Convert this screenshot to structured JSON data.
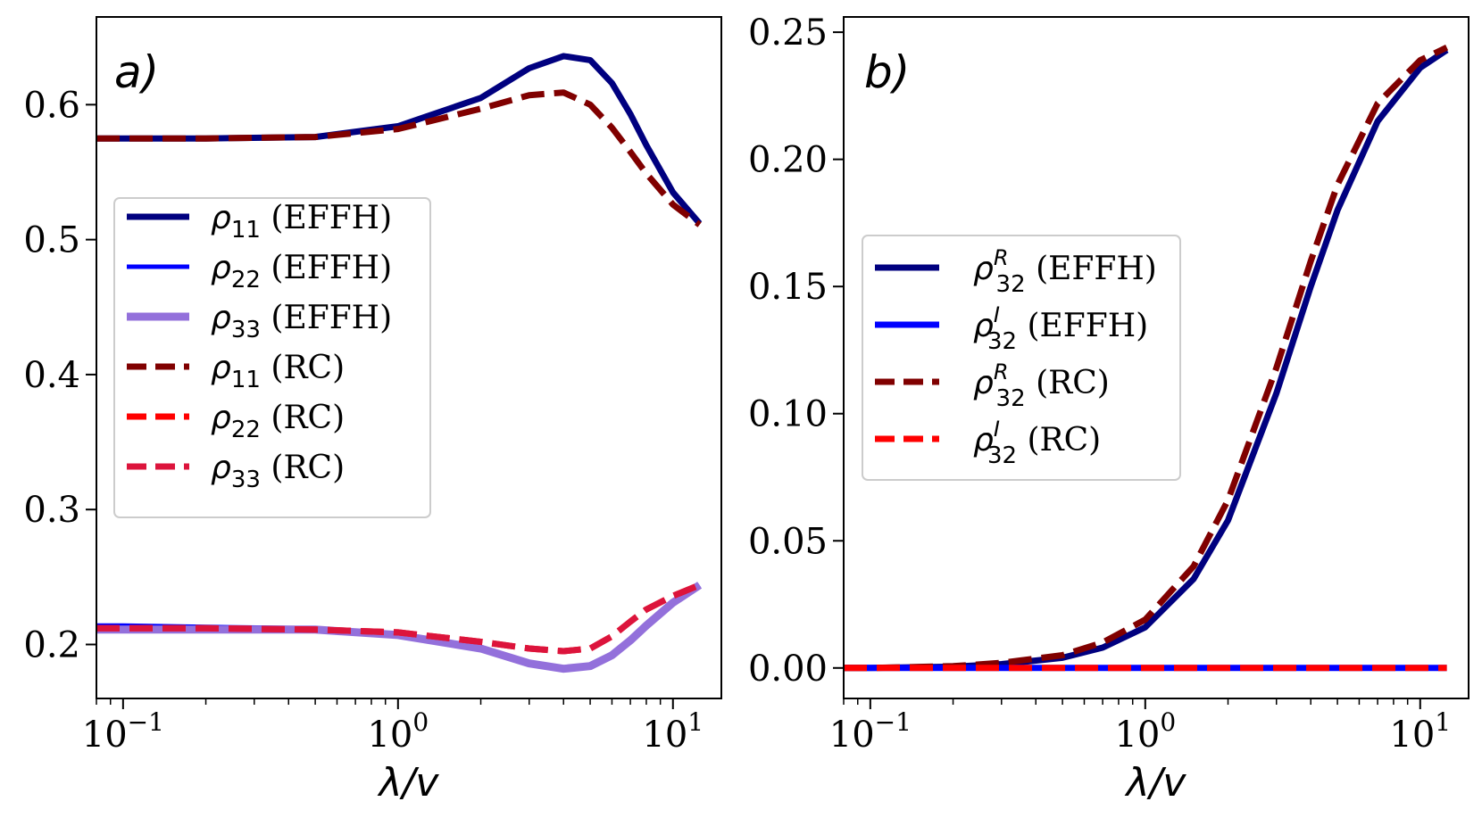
{
  "chart_data": [
    {
      "type": "line",
      "panel": "a)",
      "xlabel": "λ/v",
      "xscale": "log",
      "xlim": [
        0.08,
        15
      ],
      "ylim": [
        0.16,
        0.665
      ],
      "xticks": [
        {
          "base": "10",
          "exp": "−1",
          "value": 0.1
        },
        {
          "base": "10",
          "exp": "0",
          "value": 1
        },
        {
          "base": "10",
          "exp": "1",
          "value": 10
        }
      ],
      "yticks": [
        "0.2",
        "0.3",
        "0.4",
        "0.5",
        "0.6"
      ],
      "ytick_values": [
        0.2,
        0.3,
        0.4,
        0.5,
        0.6
      ],
      "legend_position": "center-left",
      "x": [
        0.08,
        0.1,
        0.2,
        0.5,
        1.0,
        2.0,
        3.0,
        4.0,
        5.0,
        6.0,
        7.0,
        8.0,
        10.0,
        12.5
      ],
      "series": [
        {
          "name": "ρ11 (EFFH)",
          "sym": "ρ",
          "sub": "11",
          "sup": "",
          "tag": " (EFFH)",
          "color": "#00007f",
          "dash": "solid",
          "width": 7,
          "values": [
            0.575,
            0.575,
            0.575,
            0.576,
            0.584,
            0.605,
            0.627,
            0.636,
            0.633,
            0.616,
            0.593,
            0.57,
            0.535,
            0.512
          ]
        },
        {
          "name": "ρ22 (EFFH)",
          "sym": "ρ",
          "sub": "22",
          "sup": "",
          "tag": " (EFFH)",
          "color": "#0000ff",
          "dash": "solid",
          "width": 5,
          "values": [
            0.214,
            0.214,
            0.213,
            0.212,
            0.208,
            0.198,
            0.187,
            0.183,
            0.185,
            0.192,
            0.203,
            0.214,
            0.231,
            0.244
          ]
        },
        {
          "name": "ρ33 (EFFH)",
          "sym": "ρ",
          "sub": "33",
          "sup": "",
          "tag": " (EFFH)",
          "color": "#9370db",
          "dash": "solid",
          "width": 9,
          "values": [
            0.211,
            0.211,
            0.211,
            0.211,
            0.207,
            0.197,
            0.186,
            0.182,
            0.184,
            0.192,
            0.203,
            0.214,
            0.231,
            0.244
          ]
        },
        {
          "name": "ρ11 (RC)",
          "sym": "ρ",
          "sub": "11",
          "sup": "",
          "tag": " (RC)",
          "color": "#800000",
          "dash": "dashed",
          "width": 7,
          "values": [
            0.575,
            0.575,
            0.575,
            0.576,
            0.582,
            0.597,
            0.607,
            0.609,
            0.6,
            0.583,
            0.565,
            0.549,
            0.526,
            0.511
          ]
        },
        {
          "name": "ρ22 (RC)",
          "sym": "ρ",
          "sub": "22",
          "sup": "",
          "tag": " (RC)",
          "color": "#ff0000",
          "dash": "dashed",
          "width": 7,
          "values": [
            0.212,
            0.212,
            0.212,
            0.211,
            0.209,
            0.202,
            0.197,
            0.195,
            0.197,
            0.206,
            0.217,
            0.226,
            0.236,
            0.244
          ]
        },
        {
          "name": "ρ33 (RC)",
          "sym": "ρ",
          "sub": "33",
          "sup": "",
          "tag": " (RC)",
          "color": "#dc143c",
          "dash": "dashed",
          "width": 7,
          "values": [
            0.212,
            0.212,
            0.212,
            0.211,
            0.209,
            0.202,
            0.197,
            0.195,
            0.197,
            0.206,
            0.217,
            0.226,
            0.236,
            0.244
          ]
        }
      ]
    },
    {
      "type": "line",
      "panel": "b)",
      "xlabel": "λ/v",
      "xscale": "log",
      "xlim": [
        0.08,
        15
      ],
      "ylim": [
        -0.012,
        0.256
      ],
      "xticks": [
        {
          "base": "10",
          "exp": "−1",
          "value": 0.1
        },
        {
          "base": "10",
          "exp": "0",
          "value": 1
        },
        {
          "base": "10",
          "exp": "1",
          "value": 10
        }
      ],
      "yticks": [
        "0.00",
        "0.05",
        "0.10",
        "0.15",
        "0.20",
        "0.25"
      ],
      "ytick_values": [
        0.0,
        0.05,
        0.1,
        0.15,
        0.2,
        0.25
      ],
      "legend_position": "center-left",
      "x": [
        0.08,
        0.1,
        0.2,
        0.3,
        0.5,
        0.7,
        1.0,
        1.5,
        2.0,
        3.0,
        4.0,
        5.0,
        7.0,
        10.0,
        12.5
      ],
      "series": [
        {
          "name": "ρR32 (EFFH)",
          "sym": "ρ",
          "sub": "32",
          "sup": "R",
          "tag": " (EFFH)",
          "color": "#00007f",
          "dash": "solid",
          "width": 7,
          "values": [
            0.0,
            0.0,
            0.0005,
            0.0015,
            0.004,
            0.008,
            0.016,
            0.035,
            0.058,
            0.108,
            0.15,
            0.18,
            0.215,
            0.236,
            0.243
          ]
        },
        {
          "name": "ρI32 (EFFH)",
          "sym": "ρ",
          "sub": "32",
          "sup": "I",
          "tag": " (EFFH)",
          "color": "#0000ff",
          "dash": "solid",
          "width": 7,
          "values": [
            0.0,
            0.0,
            0.0,
            0.0,
            0.0,
            0.0,
            0.0,
            0.0,
            0.0,
            0.0,
            0.0,
            0.0,
            0.0,
            0.0,
            0.0
          ]
        },
        {
          "name": "ρR32 (RC)",
          "sym": "ρ",
          "sub": "32",
          "sup": "R",
          "tag": " (RC)",
          "color": "#800000",
          "dash": "dashed",
          "width": 7,
          "values": [
            0.0,
            0.0,
            0.0007,
            0.002,
            0.005,
            0.01,
            0.019,
            0.04,
            0.066,
            0.118,
            0.16,
            0.19,
            0.222,
            0.239,
            0.244
          ]
        },
        {
          "name": "ρI32 (RC)",
          "sym": "ρ",
          "sub": "32",
          "sup": "I",
          "tag": " (RC)",
          "color": "#ff0000",
          "dash": "dashed",
          "width": 7,
          "values": [
            0.0,
            0.0,
            0.0,
            0.0,
            0.0,
            0.0,
            0.0,
            0.0,
            0.0,
            0.0,
            0.0,
            0.0,
            0.0,
            0.0,
            0.0
          ]
        }
      ]
    }
  ]
}
